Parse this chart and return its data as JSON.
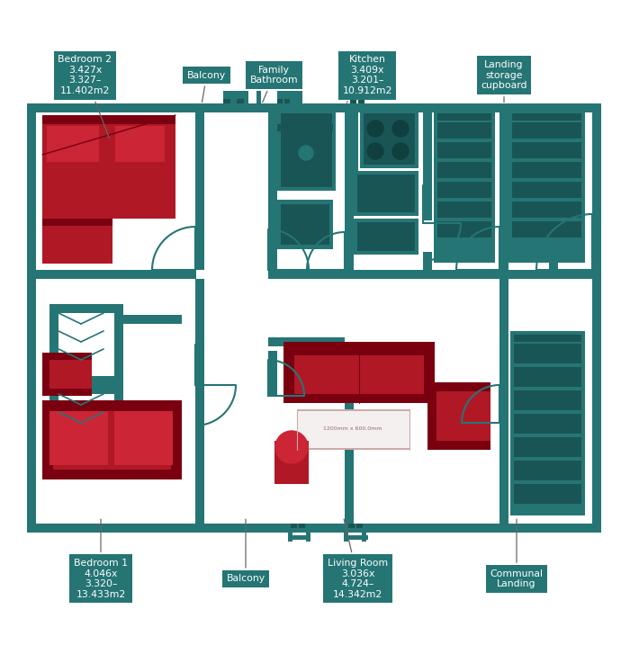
{
  "bg": "#ffffff",
  "teal": "#267575",
  "dark_teal": "#1a5555",
  "red": "#b01825",
  "dark_red": "#7a0010",
  "figsize": [
    7.0,
    7.27
  ],
  "dpi": 100,
  "labels": [
    {
      "text": "Bedroom 2\n3.427x\n3.327–\n11.402m2",
      "bx": 0.135,
      "by": 0.885,
      "arx": 0.175,
      "ary": 0.785
    },
    {
      "text": "Balcony",
      "bx": 0.328,
      "by": 0.885,
      "arx": 0.32,
      "ary": 0.84
    },
    {
      "text": "Family\nBathroom",
      "bx": 0.435,
      "by": 0.885,
      "arx": 0.415,
      "ary": 0.84
    },
    {
      "text": "Kitchen\n3.409x\n3.201–\n10.912m2",
      "bx": 0.583,
      "by": 0.885,
      "arx": 0.548,
      "ary": 0.84
    },
    {
      "text": "Landing\nstorage\ncupboard",
      "bx": 0.8,
      "by": 0.885,
      "arx": 0.8,
      "ary": 0.84
    },
    {
      "text": "Bedroom 1\n4.046x\n3.320–\n13.433m2",
      "bx": 0.16,
      "by": 0.115,
      "arx": 0.16,
      "ary": 0.21
    },
    {
      "text": "Balcony",
      "bx": 0.39,
      "by": 0.115,
      "arx": 0.39,
      "ary": 0.21
    },
    {
      "text": "Living Room\n3.036x\n4.724–\n14.342m2",
      "bx": 0.568,
      "by": 0.115,
      "arx": 0.545,
      "ary": 0.21
    },
    {
      "text": "Communal\nLanding",
      "bx": 0.82,
      "by": 0.115,
      "arx": 0.82,
      "ary": 0.21
    }
  ]
}
